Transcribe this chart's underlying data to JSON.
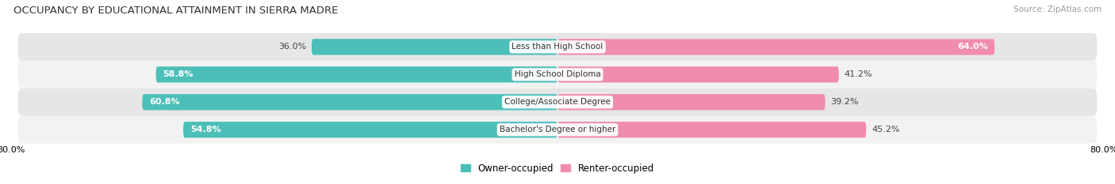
{
  "title": "OCCUPANCY BY EDUCATIONAL ATTAINMENT IN SIERRA MADRE",
  "source": "Source: ZipAtlas.com",
  "categories": [
    "Less than High School",
    "High School Diploma",
    "College/Associate Degree",
    "Bachelor's Degree or higher"
  ],
  "owner_values": [
    36.0,
    58.8,
    60.8,
    54.8
  ],
  "renter_values": [
    64.0,
    41.2,
    39.2,
    45.2
  ],
  "owner_color": "#4BBFB8",
  "renter_color": "#F08CB0",
  "row_bg_light": "#F2F2F2",
  "row_bg_dark": "#E6E6E6",
  "x_left_label": "80.0%",
  "x_right_label": "80.0%",
  "bar_height": 0.58,
  "title_fontsize": 9.5,
  "label_fontsize": 8.0,
  "source_fontsize": 7.5,
  "legend_fontsize": 8.5
}
